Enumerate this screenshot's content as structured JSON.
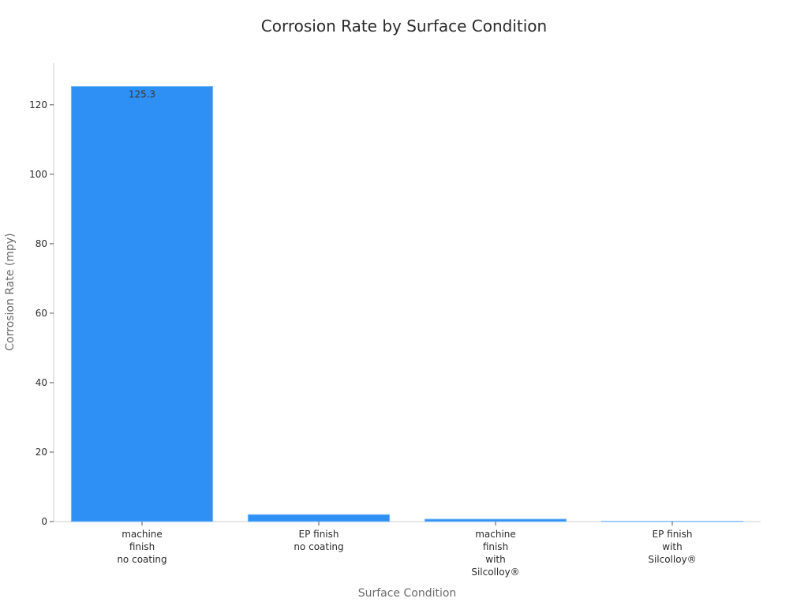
{
  "chart_data": {
    "type": "bar",
    "title": "Corrosion Rate by Surface Condition",
    "xlabel": "Surface Condition",
    "ylabel": "Corrosion Rate (mpy)",
    "categories": [
      [
        "machine",
        "finish",
        "no coating"
      ],
      [
        "EP finish",
        "no coating"
      ],
      [
        "machine",
        "finish",
        "with",
        "Silcolloy®"
      ],
      [
        "EP finish",
        "with",
        "Silcolloy®"
      ]
    ],
    "values": [
      125.3,
      2.0,
      0.7,
      0.1
    ],
    "data_labels": [
      "125.3",
      "",
      "",
      ""
    ],
    "ylim": [
      0,
      132
    ],
    "yticks": [
      0,
      20,
      40,
      60,
      80,
      100,
      120
    ],
    "grid": false,
    "legend": "none",
    "bar_color": "#2e8ff5",
    "bar_edge_color": "#7fbaf7"
  }
}
